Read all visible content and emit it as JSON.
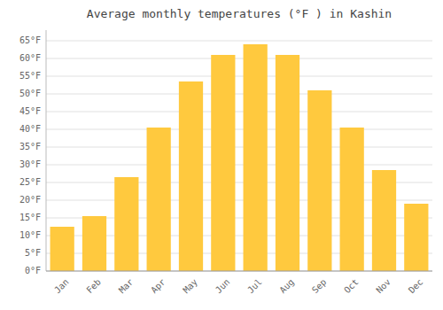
{
  "chart_data": {
    "type": "bar",
    "title": "Average monthly temperatures (°F ) in Kashin",
    "categories": [
      "Jan",
      "Feb",
      "Mar",
      "Apr",
      "May",
      "Jun",
      "Jul",
      "Aug",
      "Sep",
      "Oct",
      "Nov",
      "Dec"
    ],
    "values": [
      12.5,
      15.5,
      26.5,
      40.5,
      53.5,
      61.0,
      64.0,
      61.0,
      51.0,
      40.5,
      28.5,
      19.0
    ],
    "color": "#FFC93E",
    "ylim": [
      0,
      68
    ],
    "yticks": [
      {
        "value": 0,
        "label": "0°F"
      },
      {
        "value": 5,
        "label": "5°F"
      },
      {
        "value": 10,
        "label": "10°F"
      },
      {
        "value": 15,
        "label": "15°F"
      },
      {
        "value": 20,
        "label": "20°F"
      },
      {
        "value": 25,
        "label": "25°F"
      },
      {
        "value": 30,
        "label": "30°F"
      },
      {
        "value": 35,
        "label": "35°F"
      },
      {
        "value": 40,
        "label": "40°F"
      },
      {
        "value": 45,
        "label": "45°F"
      },
      {
        "value": 50,
        "label": "50°F"
      },
      {
        "value": 55,
        "label": "55°F"
      },
      {
        "value": 60,
        "label": "60°F"
      },
      {
        "value": 65,
        "label": "65°F"
      }
    ],
    "grid": true
  }
}
